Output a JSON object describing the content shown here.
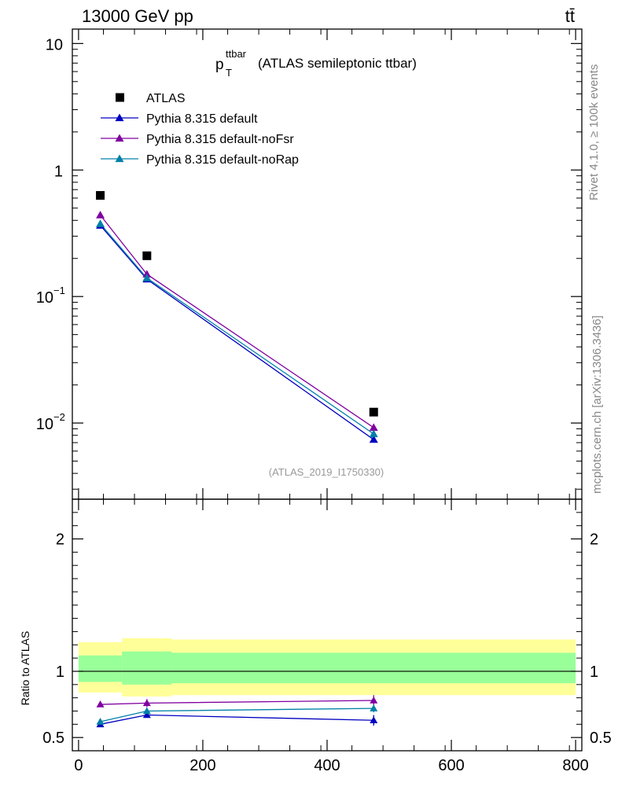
{
  "header": {
    "left_label": "13000 GeV pp",
    "right_label": "tt̄"
  },
  "side_labels": {
    "rivet": "Rivet 4.1.0, ≥ 100k events",
    "mcplots": "mcplots.cern.ch [arXiv:1306.3436]"
  },
  "title": {
    "main": "p",
    "sub": "T",
    "sup": "ttbar",
    "rest": "(ATLAS semileptonic ttbar)"
  },
  "analysis_id": "(ATLAS_2019_I1750330)",
  "chart_data": [
    {
      "type": "scatter",
      "panel": "main",
      "yscale": "log",
      "ylim": [
        0.0025,
        13
      ],
      "xlim": [
        -10,
        810
      ],
      "yticks": [
        {
          "value": 10,
          "label": "10"
        },
        {
          "value": 1,
          "label": "1"
        },
        {
          "value": 0.1,
          "label": "10",
          "exp": "−1"
        },
        {
          "value": 0.01,
          "label": "10",
          "exp": "−2"
        }
      ],
      "legend": [
        "ATLAS",
        "Pythia 8.315 default",
        "Pythia 8.315 default-noFsr",
        "Pythia 8.315 default-noRap"
      ],
      "legend_position": "top-left",
      "series": [
        {
          "name": "ATLAS",
          "marker": "square",
          "color": "#000000",
          "line": false,
          "x": [
            35,
            110,
            475
          ],
          "y": [
            0.63,
            0.21,
            0.0122
          ]
        },
        {
          "name": "Pythia 8.315 default",
          "marker": "triangle",
          "color": "#0000bf",
          "line": true,
          "x": [
            35,
            110,
            475
          ],
          "y": [
            0.365,
            0.137,
            0.0074
          ]
        },
        {
          "name": "Pythia 8.315 default-noFsr",
          "marker": "triangle",
          "color": "#8000a0",
          "line": true,
          "x": [
            35,
            110,
            475
          ],
          "y": [
            0.44,
            0.15,
            0.0092
          ]
        },
        {
          "name": "Pythia 8.315 default-noRap",
          "marker": "triangle",
          "color": "#0080a8",
          "line": true,
          "x": [
            35,
            110,
            475
          ],
          "y": [
            0.375,
            0.14,
            0.0082
          ]
        }
      ]
    },
    {
      "type": "line",
      "panel": "ratio",
      "ylabel": "Ratio to ATLAS",
      "ylim": [
        0.4,
        2.3
      ],
      "xlim": [
        -10,
        810
      ],
      "yticks": [
        {
          "value": 2,
          "label": "2"
        },
        {
          "value": 1,
          "label": "1"
        },
        {
          "value": 0.5,
          "label": "0.5"
        }
      ],
      "xticks": [
        {
          "value": 0,
          "label": "0"
        },
        {
          "value": 200,
          "label": "200"
        },
        {
          "value": 400,
          "label": "400"
        },
        {
          "value": 600,
          "label": "600"
        },
        {
          "value": 800,
          "label": "800"
        }
      ],
      "bands": [
        {
          "x0": 0,
          "x1": 70,
          "yellow": [
            0.84,
            1.22
          ],
          "green": [
            0.92,
            1.12
          ]
        },
        {
          "x0": 70,
          "x1": 150,
          "yellow": [
            0.81,
            1.25
          ],
          "green": [
            0.9,
            1.15
          ]
        },
        {
          "x0": 150,
          "x1": 800,
          "yellow": [
            0.82,
            1.24
          ],
          "green": [
            0.91,
            1.14
          ]
        }
      ],
      "series": [
        {
          "name": "Pythia 8.315 default",
          "color": "#0000bf",
          "x": [
            35,
            110,
            475
          ],
          "y": [
            0.6,
            0.67,
            0.63
          ],
          "err": [
            0.01,
            0.02,
            0.04
          ]
        },
        {
          "name": "Pythia 8.315 default-noFsr",
          "color": "#8000a0",
          "x": [
            35,
            110,
            475
          ],
          "y": [
            0.75,
            0.76,
            0.78
          ],
          "err": [
            0.01,
            0.03,
            0.04
          ]
        },
        {
          "name": "Pythia 8.315 default-noRap",
          "color": "#0080a8",
          "x": [
            35,
            110,
            475
          ],
          "y": [
            0.62,
            0.7,
            0.72
          ],
          "err": [
            0.01,
            0.02,
            0.03
          ]
        }
      ]
    }
  ]
}
